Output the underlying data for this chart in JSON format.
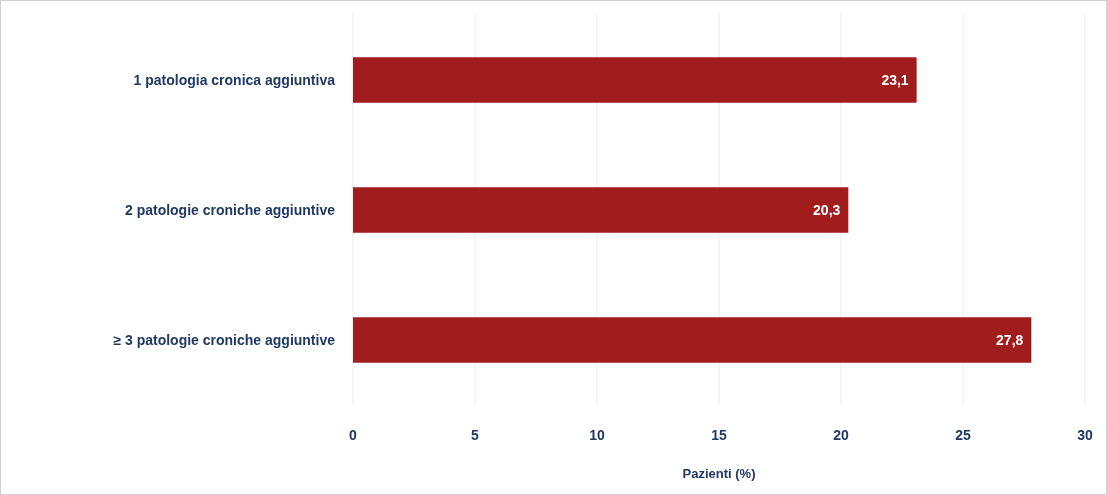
{
  "chart_data": {
    "type": "bar",
    "orientation": "horizontal",
    "xlabel": "Pazienti (%)",
    "categories": [
      "1 patologia cronica aggiuntiva",
      "2 patologie croniche aggiuntive",
      "≥ 3 patologie croniche aggiuntive"
    ],
    "values": [
      23.1,
      20.3,
      27.8
    ],
    "value_labels": [
      "23,1",
      "20,3",
      "27,8"
    ],
    "color": "#a11c1c",
    "xlim": [
      0,
      30
    ],
    "xticks": [
      0,
      5,
      10,
      15,
      20,
      25,
      30
    ],
    "grid": "x"
  }
}
